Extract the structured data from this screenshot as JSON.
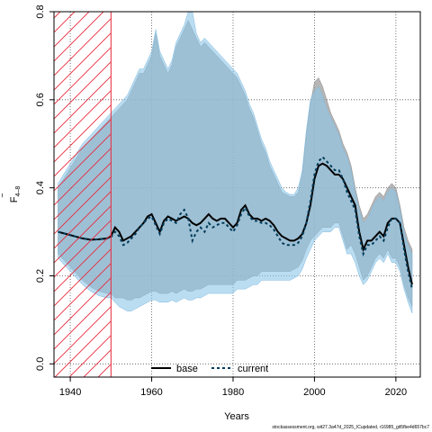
{
  "chart_data": {
    "type": "area",
    "xlabel": "Years",
    "ylabel": "F",
    "ylabel_bar": "‾",
    "ylabel_sub": "4–8",
    "xlim": [
      1936,
      2026
    ],
    "ylim": [
      -0.03,
      0.8
    ],
    "x_ticks": [
      1940,
      1960,
      1980,
      2000,
      2020
    ],
    "y_ticks": [
      0.0,
      0.2,
      0.4,
      0.6,
      0.8
    ],
    "x_tick_labels": [
      "1940",
      "1960",
      "1980",
      "2000",
      "2020"
    ],
    "y_tick_labels": [
      "0.0",
      "0.2",
      "0.4",
      "0.6",
      "0.8"
    ],
    "grid": true,
    "legend_position": "bottom",
    "hatched_period": [
      1936,
      1950
    ],
    "x": [
      1937,
      1939,
      1941,
      1943,
      1945,
      1947,
      1949,
      1950,
      1951,
      1952,
      1953,
      1954,
      1955,
      1956,
      1957,
      1958,
      1959,
      1960,
      1961,
      1962,
      1963,
      1964,
      1965,
      1966,
      1967,
      1968,
      1969,
      1970,
      1971,
      1972,
      1973,
      1974,
      1975,
      1976,
      1977,
      1978,
      1979,
      1980,
      1981,
      1982,
      1983,
      1984,
      1985,
      1986,
      1987,
      1988,
      1989,
      1990,
      1991,
      1992,
      1993,
      1994,
      1995,
      1996,
      1997,
      1998,
      1999,
      2000,
      2001,
      2002,
      2003,
      2004,
      2005,
      2006,
      2007,
      2008,
      2009,
      2010,
      2011,
      2012,
      2013,
      2014,
      2015,
      2016,
      2017,
      2018,
      2019,
      2020,
      2021,
      2022,
      2023,
      2024
    ],
    "series": [
      {
        "name": "base",
        "color": "#000000",
        "band_color": "#9e9e9e",
        "values": [
          0.3,
          0.295,
          0.29,
          0.285,
          0.282,
          0.283,
          0.285,
          0.29,
          0.31,
          0.3,
          0.28,
          0.285,
          0.29,
          0.3,
          0.31,
          0.32,
          0.335,
          0.34,
          0.32,
          0.3,
          0.325,
          0.335,
          0.33,
          0.325,
          0.33,
          0.335,
          0.33,
          0.32,
          0.315,
          0.32,
          0.33,
          0.34,
          0.33,
          0.325,
          0.33,
          0.33,
          0.32,
          0.31,
          0.32,
          0.35,
          0.36,
          0.34,
          0.33,
          0.33,
          0.325,
          0.33,
          0.325,
          0.315,
          0.3,
          0.29,
          0.285,
          0.28,
          0.28,
          0.285,
          0.295,
          0.32,
          0.36,
          0.42,
          0.45,
          0.455,
          0.45,
          0.44,
          0.43,
          0.43,
          0.42,
          0.4,
          0.38,
          0.36,
          0.3,
          0.26,
          0.28,
          0.28,
          0.29,
          0.3,
          0.29,
          0.32,
          0.33,
          0.33,
          0.32,
          0.27,
          0.22,
          0.18
        ],
        "lower": [
          0.25,
          0.23,
          0.21,
          0.19,
          0.175,
          0.165,
          0.16,
          0.16,
          0.15,
          0.15,
          0.15,
          0.145,
          0.145,
          0.15,
          0.15,
          0.155,
          0.16,
          0.165,
          0.165,
          0.16,
          0.16,
          0.16,
          0.165,
          0.16,
          0.165,
          0.17,
          0.165,
          0.165,
          0.17,
          0.17,
          0.175,
          0.18,
          0.18,
          0.18,
          0.18,
          0.18,
          0.18,
          0.18,
          0.19,
          0.19,
          0.19,
          0.195,
          0.2,
          0.2,
          0.21,
          0.21,
          0.21,
          0.21,
          0.21,
          0.21,
          0.21,
          0.21,
          0.215,
          0.22,
          0.235,
          0.26,
          0.28,
          0.29,
          0.3,
          0.31,
          0.31,
          0.31,
          0.32,
          0.32,
          0.29,
          0.26,
          0.27,
          0.25,
          0.22,
          0.19,
          0.2,
          0.22,
          0.24,
          0.25,
          0.24,
          0.26,
          0.24,
          0.24,
          0.22,
          0.18,
          0.15,
          0.13
        ],
        "upper": [
          0.4,
          0.43,
          0.46,
          0.49,
          0.51,
          0.53,
          0.55,
          0.56,
          0.57,
          0.58,
          0.59,
          0.6,
          0.62,
          0.64,
          0.66,
          0.66,
          0.68,
          0.7,
          0.75,
          0.7,
          0.68,
          0.66,
          0.68,
          0.72,
          0.74,
          0.76,
          0.78,
          0.76,
          0.74,
          0.72,
          0.73,
          0.72,
          0.71,
          0.7,
          0.69,
          0.68,
          0.67,
          0.66,
          0.65,
          0.63,
          0.61,
          0.58,
          0.56,
          0.53,
          0.5,
          0.48,
          0.45,
          0.43,
          0.41,
          0.39,
          0.385,
          0.38,
          0.38,
          0.39,
          0.43,
          0.52,
          0.59,
          0.64,
          0.65,
          0.63,
          0.6,
          0.57,
          0.55,
          0.53,
          0.5,
          0.48,
          0.45,
          0.4,
          0.36,
          0.33,
          0.34,
          0.36,
          0.38,
          0.39,
          0.38,
          0.4,
          0.41,
          0.4,
          0.36,
          0.31,
          0.28,
          0.26
        ]
      },
      {
        "name": "current",
        "color": "#003c5a",
        "band_color": "#8ec7ea",
        "values": [
          0.3,
          0.295,
          0.29,
          0.285,
          0.282,
          0.283,
          0.285,
          0.288,
          0.3,
          0.29,
          0.27,
          0.275,
          0.285,
          0.295,
          0.31,
          0.32,
          0.33,
          0.335,
          0.315,
          0.295,
          0.32,
          0.33,
          0.325,
          0.32,
          0.34,
          0.35,
          0.33,
          0.28,
          0.3,
          0.31,
          0.3,
          0.32,
          0.31,
          0.315,
          0.32,
          0.32,
          0.31,
          0.3,
          0.315,
          0.34,
          0.355,
          0.335,
          0.325,
          0.325,
          0.32,
          0.32,
          0.315,
          0.305,
          0.29,
          0.275,
          0.27,
          0.27,
          0.27,
          0.275,
          0.29,
          0.32,
          0.37,
          0.43,
          0.46,
          0.47,
          0.46,
          0.45,
          0.44,
          0.44,
          0.42,
          0.39,
          0.37,
          0.35,
          0.29,
          0.25,
          0.27,
          0.27,
          0.28,
          0.29,
          0.28,
          0.31,
          0.33,
          0.33,
          0.32,
          0.26,
          0.21,
          0.17
        ],
        "lower": [
          0.24,
          0.22,
          0.2,
          0.18,
          0.165,
          0.155,
          0.15,
          0.15,
          0.14,
          0.13,
          0.125,
          0.12,
          0.12,
          0.125,
          0.13,
          0.135,
          0.14,
          0.145,
          0.145,
          0.14,
          0.14,
          0.14,
          0.145,
          0.14,
          0.145,
          0.15,
          0.145,
          0.145,
          0.15,
          0.15,
          0.155,
          0.16,
          0.16,
          0.16,
          0.16,
          0.16,
          0.16,
          0.16,
          0.17,
          0.17,
          0.17,
          0.175,
          0.18,
          0.18,
          0.19,
          0.19,
          0.19,
          0.19,
          0.19,
          0.19,
          0.19,
          0.19,
          0.195,
          0.2,
          0.215,
          0.24,
          0.26,
          0.28,
          0.29,
          0.3,
          0.3,
          0.3,
          0.31,
          0.31,
          0.28,
          0.25,
          0.25,
          0.23,
          0.2,
          0.18,
          0.19,
          0.21,
          0.23,
          0.24,
          0.23,
          0.25,
          0.23,
          0.23,
          0.21,
          0.17,
          0.14,
          0.115
        ],
        "upper": [
          0.41,
          0.44,
          0.47,
          0.5,
          0.52,
          0.54,
          0.56,
          0.57,
          0.58,
          0.59,
          0.6,
          0.61,
          0.63,
          0.65,
          0.67,
          0.67,
          0.69,
          0.71,
          0.76,
          0.71,
          0.69,
          0.67,
          0.69,
          0.73,
          0.75,
          0.77,
          0.8,
          0.8,
          0.75,
          0.73,
          0.74,
          0.73,
          0.72,
          0.71,
          0.7,
          0.69,
          0.68,
          0.67,
          0.66,
          0.64,
          0.62,
          0.59,
          0.57,
          0.54,
          0.51,
          0.49,
          0.46,
          0.44,
          0.42,
          0.4,
          0.39,
          0.385,
          0.385,
          0.4,
          0.44,
          0.53,
          0.6,
          0.62,
          0.63,
          0.61,
          0.58,
          0.56,
          0.54,
          0.52,
          0.49,
          0.47,
          0.44,
          0.39,
          0.35,
          0.32,
          0.33,
          0.35,
          0.37,
          0.38,
          0.37,
          0.39,
          0.4,
          0.39,
          0.35,
          0.3,
          0.27,
          0.25
        ]
      }
    ]
  },
  "footer_text": "stockassessment.org, wit27.3a47d_2025_ICupdated, r16985_git5fbe4d657bc7"
}
